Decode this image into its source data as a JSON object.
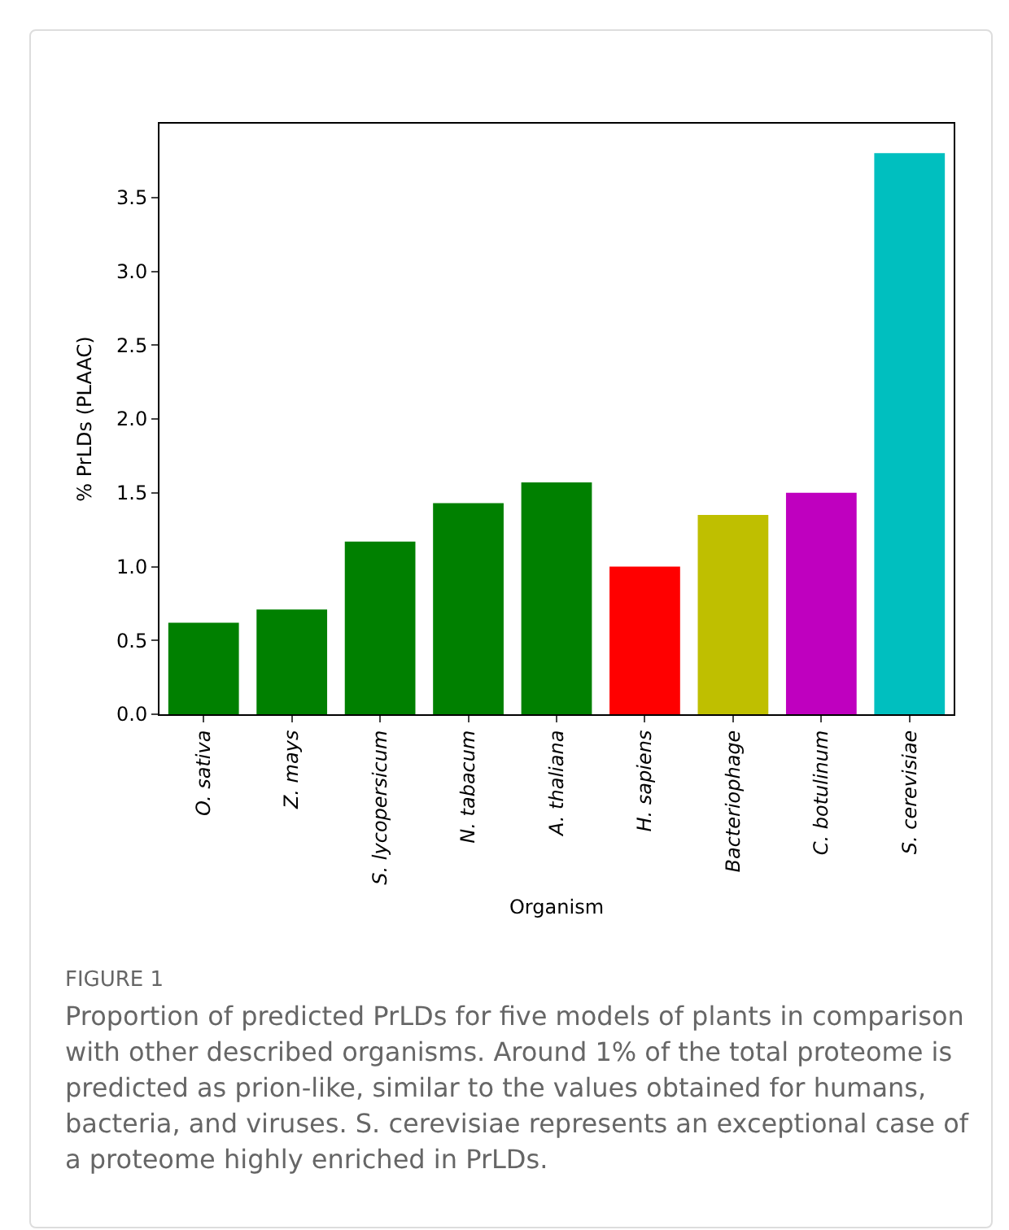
{
  "chart_data": {
    "type": "bar",
    "xlabel": "Organism",
    "ylabel": "% PrLDs (PLAAC)",
    "categories": [
      "O. sativa",
      "Z. mays",
      "S. lycopersicum",
      "N. tabacum",
      "A. thaliana",
      "H. sapiens",
      "Bacteriophage",
      "C. botulinum",
      "S. cerevisiae"
    ],
    "values": [
      0.62,
      0.71,
      1.17,
      1.43,
      1.57,
      1.0,
      1.35,
      1.5,
      3.8
    ],
    "colors": [
      "#008000",
      "#008000",
      "#008000",
      "#008000",
      "#008000",
      "#ff0000",
      "#bfbf00",
      "#bf00bf",
      "#00bfbf"
    ],
    "ylim": [
      0,
      4.0
    ],
    "yticks": [
      {
        "value": 0,
        "label": "0.0"
      },
      0.5,
      {
        "value": 1,
        "label": "1.0"
      },
      1.5,
      {
        "value": 2,
        "label": "2.0"
      },
      2.5,
      {
        "value": 3,
        "label": "3.0"
      },
      3.5
    ],
    "grid": false,
    "annotations": [
      "FIGURE 1",
      "Proportion of predicted PrLDs for five models of plants in comparison with other described organisms. Around 1% of the total proteome is predicted as prion-like, similar to the values obtained for humans, bacteria, and viruses. S. cerevisiae represents an exceptional case of a proteome highly enriched in PrLDs."
    ]
  }
}
